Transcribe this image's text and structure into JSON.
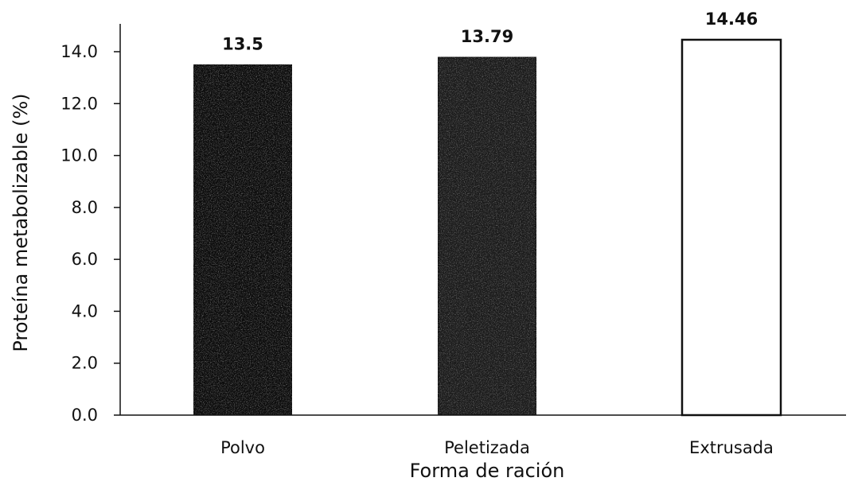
{
  "chart_data": {
    "type": "bar",
    "categories": [
      "Polvo",
      "Peletizada",
      "Extrusada"
    ],
    "values": [
      13.5,
      13.79,
      14.46
    ],
    "value_labels": [
      "13.5",
      "13.79",
      "14.46"
    ],
    "xlabel": "Forma de ración",
    "ylabel": "Proteína metabolizable  (%)",
    "ylim": [
      0,
      14
    ],
    "yticks": [
      "0.0",
      "2.0",
      "4.0",
      "6.0",
      "8.0",
      "10.0",
      "12.0",
      "14.0"
    ],
    "grid": false,
    "legend": "none",
    "bar_colors": [
      "#111111",
      "#1c1c1c",
      "#ffffff"
    ],
    "bar_edge_color": "#111111"
  }
}
